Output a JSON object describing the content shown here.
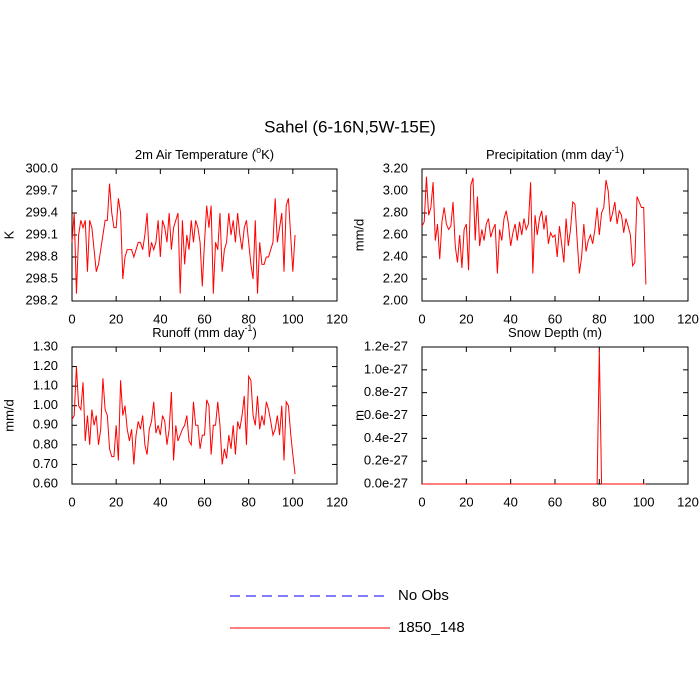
{
  "title": "Sahel (6-16N,5W-15E)",
  "legend": [
    {
      "name": "No Obs",
      "color": "#0000ff",
      "dashed": true
    },
    {
      "name": "1850_148",
      "color": "#ff0000",
      "dashed": false
    }
  ],
  "chart_data": [
    {
      "type": "line",
      "title": [
        {
          "text": "2m Air Temperature ("
        },
        {
          "text": "o",
          "sup": true
        },
        {
          "text": "K)"
        }
      ],
      "y_label": "K",
      "xlim": [
        0,
        120
      ],
      "xticks": [
        0,
        20,
        40,
        60,
        80,
        100,
        120
      ],
      "ylim": [
        298.2,
        300
      ],
      "yticks": [
        298.2,
        298.5,
        298.8,
        299.1,
        299.4,
        299.7,
        {
          "value": 300,
          "label": "300.0"
        }
      ],
      "x": [
        0,
        1,
        2,
        3,
        4,
        5,
        6,
        7,
        8,
        9,
        10,
        11,
        12,
        13,
        14,
        15,
        16,
        17,
        18,
        19,
        20,
        21,
        22,
        23,
        24,
        25,
        26,
        27,
        28,
        29,
        30,
        31,
        32,
        33,
        34,
        35,
        36,
        37,
        38,
        39,
        40,
        41,
        42,
        43,
        44,
        45,
        46,
        47,
        48,
        49,
        50,
        51,
        52,
        53,
        54,
        55,
        56,
        57,
        58,
        59,
        60,
        61,
        62,
        63,
        64,
        65,
        66,
        67,
        68,
        69,
        70,
        71,
        72,
        73,
        74,
        75,
        76,
        77,
        78,
        79,
        80,
        81,
        82,
        83,
        84,
        85,
        86,
        87,
        88,
        89,
        90,
        91,
        92,
        93,
        94,
        95,
        96,
        97,
        98,
        99,
        100,
        101
      ],
      "series": [
        {
          "color": "#ff0000",
          "values": [
            299.0,
            299.4,
            298.3,
            299.1,
            299.3,
            299.2,
            299.3,
            298.6,
            299.3,
            299.2,
            298.9,
            298.6,
            298.7,
            298.9,
            299.1,
            299.3,
            299.3,
            299.8,
            299.4,
            299.2,
            299.2,
            299.6,
            299.4,
            298.5,
            298.8,
            298.9,
            298.9,
            298.9,
            298.8,
            298.9,
            299.0,
            299.0,
            298.9,
            299.1,
            299.4,
            298.8,
            299.0,
            298.9,
            299.0,
            299.3,
            298.8,
            299.3,
            299.2,
            299.0,
            299.4,
            298.9,
            299.2,
            299.3,
            299.4,
            298.3,
            299.3,
            298.7,
            299.1,
            298.9,
            299.3,
            299.0,
            299.3,
            299.2,
            299.0,
            298.4,
            299.0,
            299.5,
            299.2,
            299.5,
            298.3,
            299.0,
            298.9,
            299.4,
            298.6,
            298.9,
            299.0,
            299.4,
            299.1,
            299.3,
            299.0,
            299.4,
            299.1,
            298.9,
            299.2,
            299.3,
            299.0,
            298.7,
            298.5,
            299.3,
            298.3,
            299.0,
            298.7,
            298.7,
            298.8,
            298.8,
            298.9,
            299.0,
            299.6,
            299.0,
            299.2,
            299.4,
            298.6,
            299.5,
            299.6,
            299.1,
            298.6,
            299.1
          ]
        }
      ]
    },
    {
      "type": "line",
      "title": [
        {
          "text": "Precipitation (mm day"
        },
        {
          "text": "-1",
          "sup": true
        },
        {
          "text": ")"
        }
      ],
      "y_label": "mm/d",
      "xlim": [
        0,
        120
      ],
      "xticks": [
        0,
        20,
        40,
        60,
        80,
        100,
        120
      ],
      "ylim": [
        2.0,
        3.2
      ],
      "yticks": [
        {
          "value": 2.0,
          "label": "2.00"
        },
        {
          "value": 2.2,
          "label": "2.20"
        },
        {
          "value": 2.4,
          "label": "2.40"
        },
        {
          "value": 2.6,
          "label": "2.60"
        },
        {
          "value": 2.8,
          "label": "2.80"
        },
        {
          "value": 3.0,
          "label": "3.00"
        },
        {
          "value": 3.2,
          "label": "3.20"
        }
      ],
      "x": [
        0,
        1,
        2,
        3,
        4,
        5,
        6,
        7,
        8,
        9,
        10,
        11,
        12,
        13,
        14,
        15,
        16,
        17,
        18,
        19,
        20,
        21,
        22,
        23,
        24,
        25,
        26,
        27,
        28,
        29,
        30,
        31,
        32,
        33,
        34,
        35,
        36,
        37,
        38,
        39,
        40,
        41,
        42,
        43,
        44,
        45,
        46,
        47,
        48,
        49,
        50,
        51,
        52,
        53,
        54,
        55,
        56,
        57,
        58,
        59,
        60,
        61,
        62,
        63,
        64,
        65,
        66,
        67,
        68,
        69,
        70,
        71,
        72,
        73,
        74,
        75,
        76,
        77,
        78,
        79,
        80,
        81,
        82,
        83,
        84,
        85,
        86,
        87,
        88,
        89,
        90,
        91,
        92,
        93,
        94,
        95,
        96,
        97,
        98,
        99,
        100,
        101
      ],
      "series": [
        {
          "color": "#ff0000",
          "values": [
            2.68,
            2.72,
            3.13,
            2.78,
            2.85,
            3.08,
            2.55,
            2.7,
            2.38,
            2.72,
            2.85,
            2.7,
            2.65,
            2.68,
            2.9,
            2.5,
            2.35,
            2.6,
            2.3,
            2.65,
            2.7,
            2.28,
            3.05,
            3.12,
            2.55,
            2.95,
            2.5,
            2.65,
            2.55,
            2.7,
            2.75,
            2.58,
            2.65,
            2.7,
            2.25,
            2.65,
            2.55,
            2.75,
            2.82,
            2.7,
            2.5,
            2.62,
            2.7,
            2.55,
            2.72,
            2.6,
            2.75,
            2.65,
            2.7,
            3.08,
            2.25,
            2.78,
            2.6,
            2.75,
            2.82,
            2.65,
            2.78,
            2.52,
            2.62,
            2.58,
            2.6,
            2.4,
            2.68,
            2.52,
            2.35,
            2.75,
            2.5,
            2.65,
            2.9,
            2.88,
            2.55,
            2.25,
            2.4,
            2.7,
            2.45,
            2.55,
            2.6,
            2.52,
            2.65,
            2.85,
            2.6,
            2.8,
            2.85,
            3.1,
            3.0,
            2.72,
            2.8,
            2.9,
            2.7,
            2.82,
            2.78,
            2.62,
            2.75,
            2.68,
            2.6,
            2.32,
            2.35,
            2.95,
            2.9,
            2.85,
            2.85,
            2.15
          ]
        }
      ]
    },
    {
      "type": "line",
      "title": [
        {
          "text": "Runoff (mm day"
        },
        {
          "text": "-1",
          "sup": true
        },
        {
          "text": ")"
        }
      ],
      "y_label": "mm/d",
      "xlim": [
        0,
        120
      ],
      "xticks": [
        0,
        20,
        40,
        60,
        80,
        100,
        120
      ],
      "ylim": [
        0.6,
        1.3
      ],
      "yticks": [
        {
          "value": 0.6,
          "label": "0.60"
        },
        {
          "value": 0.7,
          "label": "0.70"
        },
        {
          "value": 0.8,
          "label": "0.80"
        },
        {
          "value": 0.9,
          "label": "0.90"
        },
        {
          "value": 1.0,
          "label": "1.00"
        },
        {
          "value": 1.1,
          "label": "1.10"
        },
        {
          "value": 1.2,
          "label": "1.20"
        },
        {
          "value": 1.3,
          "label": "1.30"
        }
      ],
      "x": [
        0,
        1,
        2,
        3,
        4,
        5,
        6,
        7,
        8,
        9,
        10,
        11,
        12,
        13,
        14,
        15,
        16,
        17,
        18,
        19,
        20,
        21,
        22,
        23,
        24,
        25,
        26,
        27,
        28,
        29,
        30,
        31,
        32,
        33,
        34,
        35,
        36,
        37,
        38,
        39,
        40,
        41,
        42,
        43,
        44,
        45,
        46,
        47,
        48,
        49,
        50,
        51,
        52,
        53,
        54,
        55,
        56,
        57,
        58,
        59,
        60,
        61,
        62,
        63,
        64,
        65,
        66,
        67,
        68,
        69,
        70,
        71,
        72,
        73,
        74,
        75,
        76,
        77,
        78,
        79,
        80,
        81,
        82,
        83,
        84,
        85,
        86,
        87,
        88,
        89,
        90,
        91,
        92,
        93,
        94,
        95,
        96,
        97,
        98,
        99,
        100,
        101
      ],
      "series": [
        {
          "color": "#ff0000",
          "values": [
            0.93,
            0.95,
            1.2,
            1.0,
            0.98,
            1.12,
            0.82,
            0.95,
            0.8,
            0.98,
            0.9,
            0.95,
            0.8,
            0.88,
            1.14,
            0.98,
            0.95,
            0.78,
            0.74,
            0.74,
            0.9,
            0.72,
            1.13,
            0.95,
            1.0,
            0.88,
            0.82,
            0.88,
            0.7,
            0.85,
            0.92,
            0.88,
            0.95,
            0.8,
            0.75,
            0.88,
            0.92,
            1.02,
            0.86,
            0.9,
            0.85,
            0.95,
            0.92,
            0.8,
            0.88,
            1.07,
            0.72,
            0.9,
            0.82,
            0.85,
            0.88,
            0.9,
            0.95,
            0.82,
            0.8,
            1.02,
            0.9,
            0.9,
            0.78,
            0.85,
            0.85,
            1.03,
            1.0,
            0.75,
            0.9,
            0.9,
            1.02,
            0.9,
            0.7,
            0.78,
            0.73,
            0.85,
            0.78,
            0.9,
            0.75,
            0.92,
            0.88,
            0.95,
            1.05,
            0.8,
            1.15,
            1.13,
            0.95,
            0.9,
            1.05,
            0.88,
            0.95,
            0.9,
            1.02,
            0.98,
            0.92,
            0.85,
            0.88,
            0.95,
            0.85,
            1.0,
            0.72,
            1.02,
            1.0,
            0.86,
            0.75,
            0.65
          ]
        }
      ]
    },
    {
      "type": "line",
      "title": [
        {
          "text": "Snow Depth (m)"
        }
      ],
      "y_label": "m",
      "xlim": [
        0,
        120
      ],
      "xticks": [
        0,
        20,
        40,
        60,
        80,
        100,
        120
      ],
      "ylim": [
        0,
        1.2e-27
      ],
      "yticks": [
        {
          "value": 0,
          "label": "0.0e-27"
        },
        {
          "value": 2e-28,
          "label": "0.2e-27"
        },
        {
          "value": 4e-28,
          "label": "0.4e-27"
        },
        {
          "value": 6e-28,
          "label": "0.6e-27"
        },
        {
          "value": 8e-28,
          "label": "0.8e-27"
        },
        {
          "value": 1e-27,
          "label": "1.0e-27"
        },
        {
          "value": 1.2e-27,
          "label": "1.2e-27"
        }
      ],
      "x": [
        0,
        79,
        80,
        81,
        101
      ],
      "series": [
        {
          "color": "#ff0000",
          "values": [
            0,
            0,
            1.18e-27,
            0,
            0
          ]
        }
      ]
    }
  ]
}
